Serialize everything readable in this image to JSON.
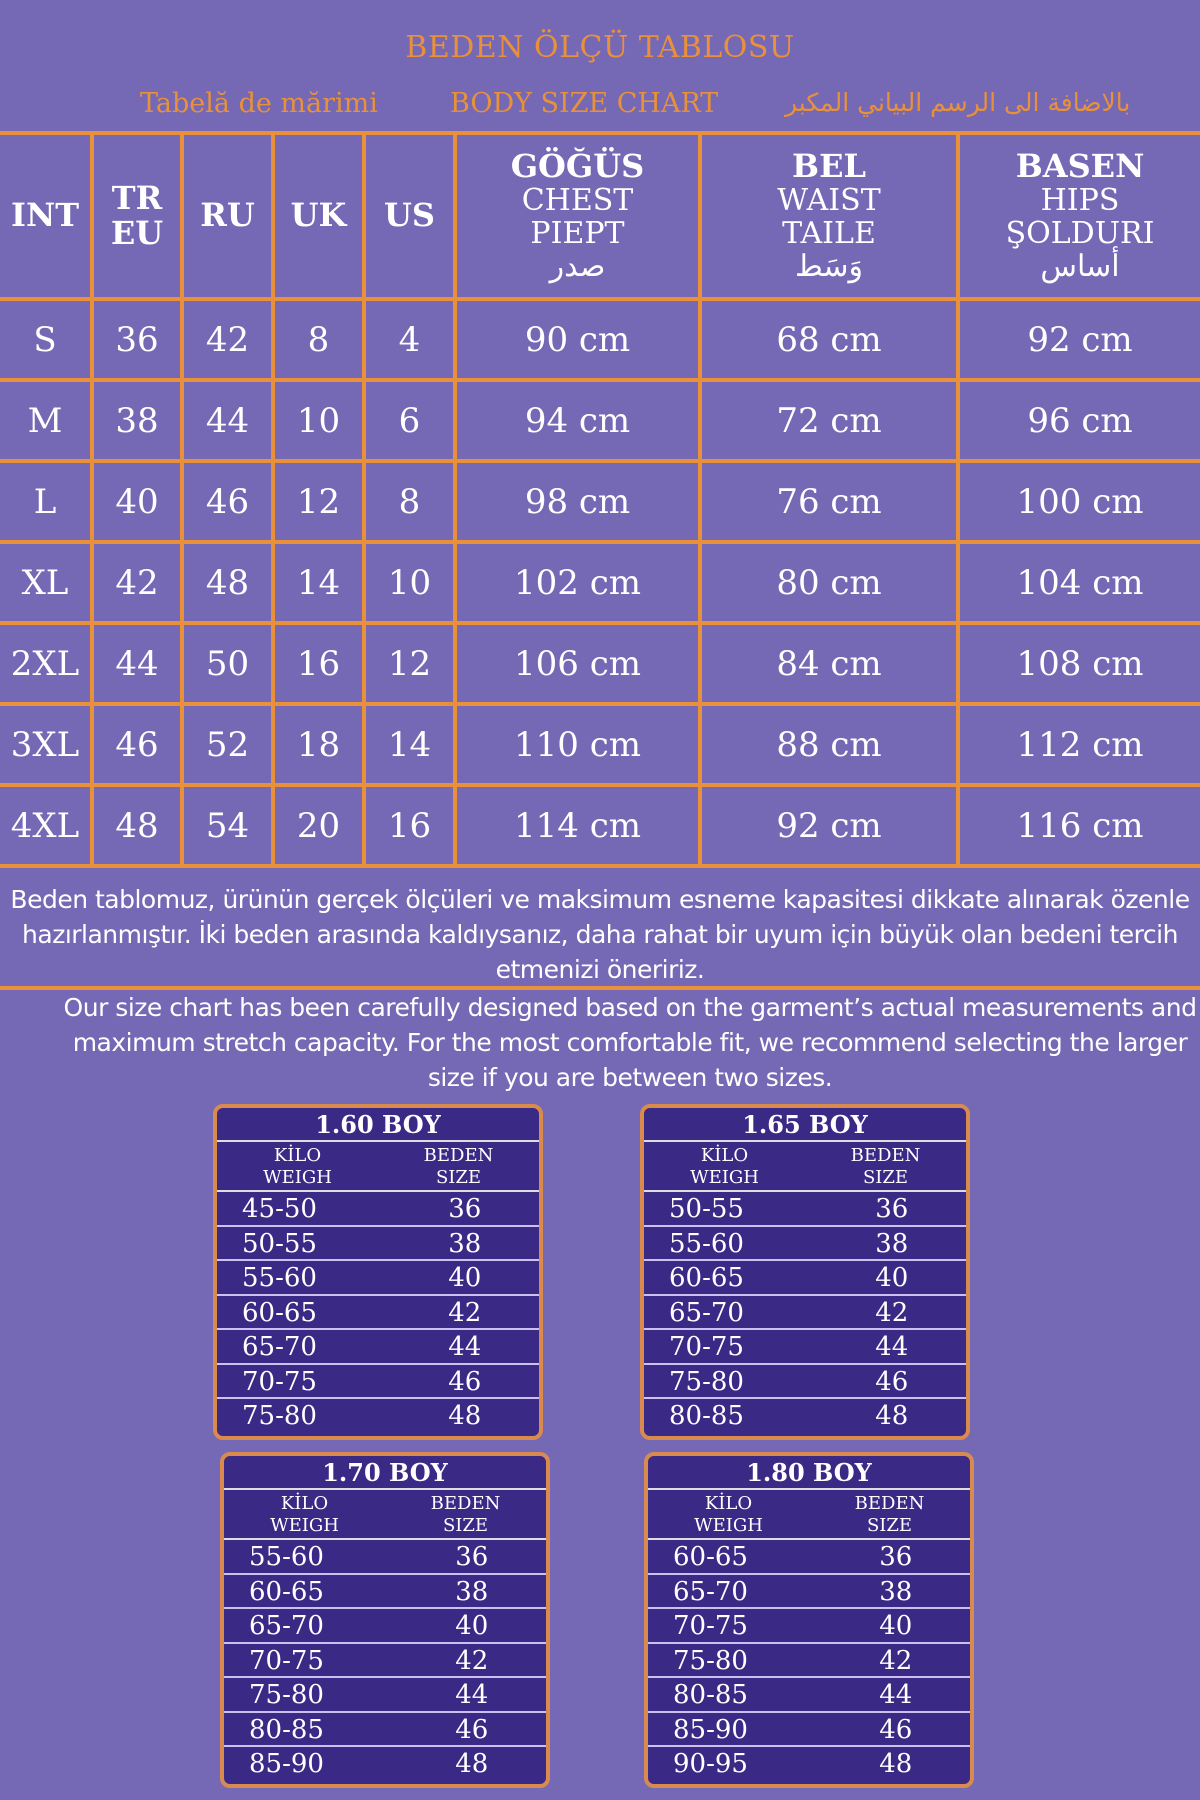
{
  "title": "BEDEN ÖLÇÜ TABLOSU",
  "subtitles": {
    "ro": "Tabelă de mărimi",
    "en": "BODY SIZE CHART",
    "ar": "بالاضافة الى الرسم البياني المكبر"
  },
  "colors": {
    "background": "#7568b4",
    "accent": "#e8913a",
    "box_fill": "#3a2a86"
  },
  "table": {
    "headers": [
      [
        "INT"
      ],
      [
        "TR",
        "EU"
      ],
      [
        "RU"
      ],
      [
        "UK"
      ],
      [
        "US"
      ],
      [
        "GÖĞÜS",
        "CHEST",
        "PIEPT",
        "صدر"
      ],
      [
        "BEL",
        "WAIST",
        "TAILE",
        "وَسَط"
      ],
      [
        "BASEN",
        "HIPS",
        "ŞOLDURI",
        "أساس"
      ]
    ],
    "rows": [
      [
        "S",
        "36",
        "42",
        "8",
        "4",
        "90 cm",
        "68 cm",
        "92 cm"
      ],
      [
        "M",
        "38",
        "44",
        "10",
        "6",
        "94 cm",
        "72 cm",
        "96 cm"
      ],
      [
        "L",
        "40",
        "46",
        "12",
        "8",
        "98 cm",
        "76 cm",
        "100 cm"
      ],
      [
        "XL",
        "42",
        "48",
        "14",
        "10",
        "102 cm",
        "80 cm",
        "104 cm"
      ],
      [
        "2XL",
        "44",
        "50",
        "16",
        "12",
        "106 cm",
        "84 cm",
        "108 cm"
      ],
      [
        "3XL",
        "46",
        "52",
        "18",
        "14",
        "110 cm",
        "88 cm",
        "112 cm"
      ],
      [
        "4XL",
        "48",
        "54",
        "20",
        "16",
        "114 cm",
        "92 cm",
        "116 cm"
      ]
    ]
  },
  "note_tr": "Beden tablomuz, ürünün gerçek ölçüleri ve maksimum esneme kapasitesi dikkate alınarak özenle hazırlanmıştır. İki beden arasında kaldıysanız, daha rahat bir uyum için büyük olan bedeni tercih etmenizi öneririz.",
  "note_en": "Our size chart has been carefully designed based on the garment’s actual measurements and maximum stretch capacity. For the most comfortable fit, we recommend selecting the larger size if you are between two sizes.",
  "boxes": [
    {
      "title": "1.60 BOY",
      "col1": [
        "KİLO",
        "WEIGH"
      ],
      "col2": [
        "BEDEN",
        "SIZE"
      ],
      "rows": [
        [
          "45-50",
          "36"
        ],
        [
          "50-55",
          "38"
        ],
        [
          "55-60",
          "40"
        ],
        [
          "60-65",
          "42"
        ],
        [
          "65-70",
          "44"
        ],
        [
          "70-75",
          "46"
        ],
        [
          "75-80",
          "48"
        ]
      ]
    },
    {
      "title": "1.65 BOY",
      "col1": [
        "KİLO",
        "WEIGH"
      ],
      "col2": [
        "BEDEN",
        "SIZE"
      ],
      "rows": [
        [
          "50-55",
          "36"
        ],
        [
          "55-60",
          "38"
        ],
        [
          "60-65",
          "40"
        ],
        [
          "65-70",
          "42"
        ],
        [
          "70-75",
          "44"
        ],
        [
          "75-80",
          "46"
        ],
        [
          "80-85",
          "48"
        ]
      ]
    },
    {
      "title": "1.70 BOY",
      "col1": [
        "KİLO",
        "WEIGH"
      ],
      "col2": [
        "BEDEN",
        "SIZE"
      ],
      "rows": [
        [
          "55-60",
          "36"
        ],
        [
          "60-65",
          "38"
        ],
        [
          "65-70",
          "40"
        ],
        [
          "70-75",
          "42"
        ],
        [
          "75-80",
          "44"
        ],
        [
          "80-85",
          "46"
        ],
        [
          "85-90",
          "48"
        ]
      ]
    },
    {
      "title": "1.80 BOY",
      "col1": [
        "KİLO",
        "WEIGH"
      ],
      "col2": [
        "BEDEN",
        "SIZE"
      ],
      "rows": [
        [
          "60-65",
          "36"
        ],
        [
          "65-70",
          "38"
        ],
        [
          "70-75",
          "40"
        ],
        [
          "75-80",
          "42"
        ],
        [
          "80-85",
          "44"
        ],
        [
          "85-90",
          "46"
        ],
        [
          "90-95",
          "48"
        ]
      ]
    }
  ]
}
